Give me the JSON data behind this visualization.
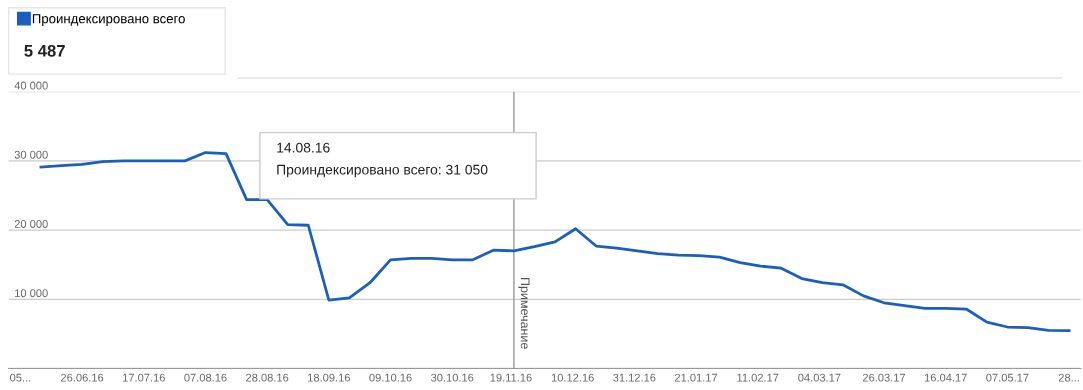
{
  "chart_data": {
    "type": "line",
    "x": [
      "2016-06-12",
      "2016-06-19",
      "2016-06-26",
      "2016-07-03",
      "2016-07-10",
      "2016-07-17",
      "2016-07-24",
      "2016-07-31",
      "2016-08-07",
      "2016-08-14",
      "2016-08-21",
      "2016-08-28",
      "2016-09-04",
      "2016-09-11",
      "2016-09-18",
      "2016-09-25",
      "2016-10-02",
      "2016-10-09",
      "2016-10-16",
      "2016-10-23",
      "2016-10-30",
      "2016-11-06",
      "2016-11-13",
      "2016-11-20",
      "2016-11-27",
      "2016-12-04",
      "2016-12-11",
      "2016-12-18",
      "2016-12-25",
      "2017-01-01",
      "2017-01-08",
      "2017-01-15",
      "2017-01-22",
      "2017-01-29",
      "2017-02-05",
      "2017-02-12",
      "2017-02-19",
      "2017-02-26",
      "2017-03-05",
      "2017-03-12",
      "2017-03-19",
      "2017-03-26",
      "2017-04-02",
      "2017-04-09",
      "2017-04-16",
      "2017-04-23",
      "2017-04-30",
      "2017-05-07",
      "2017-05-14",
      "2017-05-21",
      "2017-05-28"
    ],
    "series": [
      {
        "name": "Проиндексировано всего",
        "color": "#1a5fbf",
        "values": [
          29100,
          29300,
          29500,
          29900,
          30000,
          30000,
          30000,
          30000,
          31200,
          31050,
          24400,
          24400,
          20800,
          20700,
          9900,
          10200,
          12400,
          15700,
          15900,
          15900,
          15700,
          15700,
          17100,
          17000,
          17600,
          18300,
          20200,
          17700,
          17400,
          17000,
          16600,
          16400,
          16300,
          16100,
          15300,
          14800,
          14500,
          13000,
          12400,
          12100,
          10500,
          9500,
          9100,
          8700,
          8700,
          8600,
          6700,
          6000,
          5900,
          5500,
          5487
        ]
      }
    ],
    "ylim": [
      0,
      40000
    ],
    "yticks": [
      {
        "value": 0,
        "label": null
      },
      {
        "value": 10000,
        "label": "10 000"
      },
      {
        "value": 20000,
        "label": "20 000"
      },
      {
        "value": 30000,
        "label": "30 000"
      },
      {
        "value": 40000,
        "label": "40 000"
      }
    ],
    "xlim": [
      "2016-06-01",
      "2017-06-01"
    ],
    "xticks": [
      {
        "value": "2016-06-05",
        "label": "05..."
      },
      {
        "value": "2016-06-26",
        "label": "26.06.16"
      },
      {
        "value": "2016-07-17",
        "label": "17.07.16"
      },
      {
        "value": "2016-08-07",
        "label": "07.08.16"
      },
      {
        "value": "2016-08-28",
        "label": "28.08.16"
      },
      {
        "value": "2016-09-18",
        "label": "18.09.16"
      },
      {
        "value": "2016-10-09",
        "label": "09.10.16"
      },
      {
        "value": "2016-10-30",
        "label": "30.10.16"
      },
      {
        "value": "2016-11-19",
        "label": "19.11.16"
      },
      {
        "value": "2016-12-10",
        "label": "10.12.16"
      },
      {
        "value": "2016-12-31",
        "label": "31.12.16"
      },
      {
        "value": "2017-01-21",
        "label": "21.01.17"
      },
      {
        "value": "2017-02-11",
        "label": "11.02.17"
      },
      {
        "value": "2017-03-04",
        "label": "04.03.17"
      },
      {
        "value": "2017-03-26",
        "label": "26.03.17"
      },
      {
        "value": "2017-04-16",
        "label": "16.04.17"
      },
      {
        "value": "2017-05-07",
        "label": "07.05.17"
      },
      {
        "value": "2017-05-28",
        "label": "28..."
      }
    ],
    "ref_lines": [
      {
        "axis": "x",
        "value": "2016-11-20",
        "label": "Примечание",
        "color": "#999999"
      }
    ],
    "annotations": [
      "5 487",
      "14.08.16\nПроиндексировано всего: 31 050"
    ],
    "grid": "y",
    "legend": "top left",
    "marker": "none",
    "line_style": "solid"
  }
}
